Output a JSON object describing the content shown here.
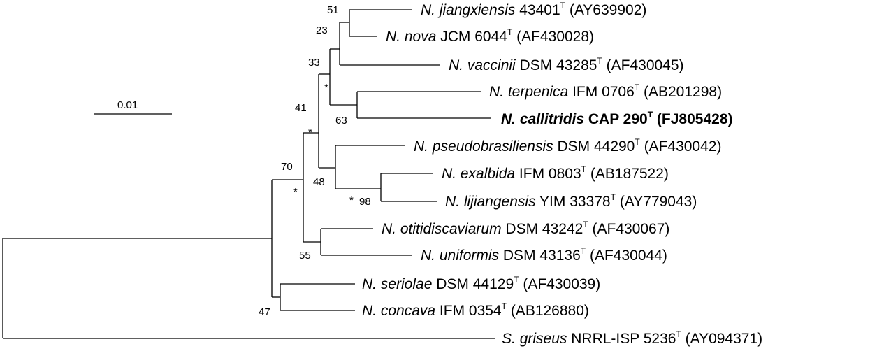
{
  "scale_bar": {
    "label": "0.01"
  },
  "taxa": [
    {
      "id": "jiangxiensis",
      "genus": "N.",
      "species": "jiangxiensis",
      "strain": "43401",
      "type_mark": "T",
      "accession": "(AY639902)",
      "bold": false
    },
    {
      "id": "nova",
      "genus": "N.",
      "species": "nova",
      "strain": "JCM 6044",
      "type_mark": "T",
      "accession": "(AF430028)",
      "bold": false
    },
    {
      "id": "vaccinii",
      "genus": "N.",
      "species": "vaccinii",
      "strain": "DSM 43285",
      "type_mark": "T",
      "accession": "(AF430045)",
      "bold": false
    },
    {
      "id": "terpenica",
      "genus": "N.",
      "species": "terpenica",
      "strain": "IFM 0706",
      "type_mark": "T",
      "accession": "(AB201298)",
      "bold": false
    },
    {
      "id": "callitridis",
      "genus": "N.",
      "species": "callitridis",
      "strain": "CAP 290",
      "type_mark": "T",
      "accession": "(FJ805428)",
      "bold": true
    },
    {
      "id": "pseudobrasiliensis",
      "genus": "N.",
      "species": "pseudobrasiliensis",
      "strain": "DSM 44290",
      "type_mark": "T",
      "accession": "(AF430042)",
      "bold": false
    },
    {
      "id": "exalbida",
      "genus": "N.",
      "species": "exalbida",
      "strain": "IFM 0803",
      "type_mark": "T",
      "accession": "(AB187522)",
      "bold": false
    },
    {
      "id": "lijiangensis",
      "genus": "N.",
      "species": "lijiangensis",
      "strain": "YIM 33378",
      "type_mark": "T",
      "accession": "(AY779043)",
      "bold": false
    },
    {
      "id": "otitidiscaviarum",
      "genus": "N.",
      "species": "otitidiscaviarum",
      "strain": "DSM 43242",
      "type_mark": "T",
      "accession": "(AF430067)",
      "bold": false
    },
    {
      "id": "uniformis",
      "genus": "N.",
      "species": "uniformis",
      "strain": "DSM 43136",
      "type_mark": "T",
      "accession": "(AF430044)",
      "bold": false
    },
    {
      "id": "seriolae",
      "genus": "N.",
      "species": "seriolae",
      "strain": "DSM 44129",
      "type_mark": "T",
      "accession": "(AF430039)",
      "bold": false
    },
    {
      "id": "concava",
      "genus": "N.",
      "species": "concava",
      "strain": "IFM 0354",
      "type_mark": "T",
      "accession": "(AB126880)",
      "bold": false
    },
    {
      "id": "griseus",
      "genus": "S.",
      "species": "griseus",
      "strain": "NRRL-ISP 5236",
      "type_mark": "T",
      "accession": "(AY094371)",
      "bold": false
    }
  ],
  "bootstrap": {
    "n51": "51",
    "n23": "23",
    "n33": "33",
    "n41": "41",
    "n63": "63",
    "n70": "70",
    "n48": "48",
    "n98": "98",
    "n55": "55",
    "n47": "47"
  },
  "markers": {
    "star": "*"
  }
}
